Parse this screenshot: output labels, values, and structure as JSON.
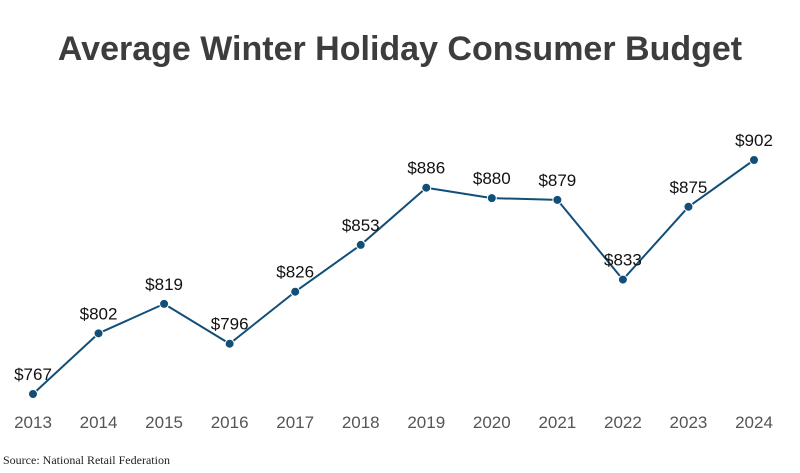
{
  "chart_data": {
    "type": "line",
    "title": "Average Winter Holiday Consumer Budget",
    "xlabel": "",
    "ylabel": "",
    "categories": [
      "2013",
      "2014",
      "2015",
      "2016",
      "2017",
      "2018",
      "2019",
      "2020",
      "2021",
      "2022",
      "2023",
      "2024"
    ],
    "series": [
      {
        "values": [
          767,
          802,
          819,
          796,
          826,
          853,
          886,
          880,
          879,
          833,
          875,
          902
        ],
        "labels": [
          "$767",
          "$802",
          "$819",
          "$796",
          "$826",
          "$853",
          "$886",
          "$880",
          "$879",
          "$833",
          "$875",
          "$902"
        ]
      }
    ],
    "ylim": [
      767,
      902
    ],
    "grid": false,
    "legend": "none",
    "colors": {
      "line": "#124e78",
      "marker": "#124e78"
    }
  },
  "source": "Source: National Retail Federation"
}
